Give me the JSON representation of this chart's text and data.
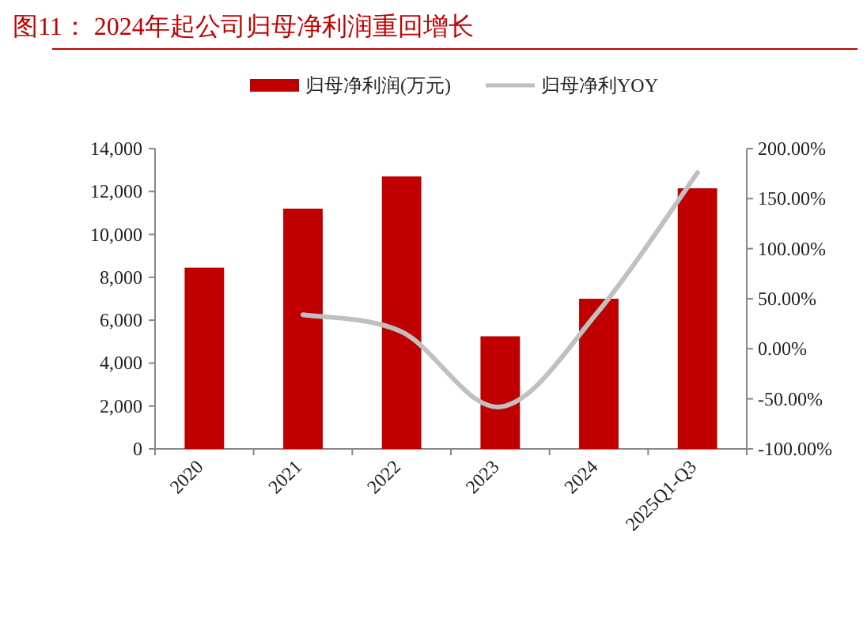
{
  "chart_data": {
    "type": "bar",
    "title": "图11：  2024年起公司归母净利润重回增长",
    "categories": [
      "2020",
      "2021",
      "2022",
      "2023",
      "2024",
      "2025Q1-Q3"
    ],
    "series": [
      {
        "name": "归母净利润(万元)",
        "axis": "y",
        "color": "#c00000",
        "values": [
          8450,
          11200,
          12700,
          5250,
          7000,
          12150
        ]
      },
      {
        "name": "归母净利YOY",
        "type": "line",
        "axis": "y2",
        "color": "#c0c0c0",
        "values": [
          null,
          34,
          17,
          -58,
          38,
          176
        ]
      }
    ],
    "ylim": [
      0,
      14000
    ],
    "yticks": [
      0,
      {
        "value": 2000,
        "label": "2,000"
      },
      {
        "value": 4000,
        "label": "4,000"
      },
      {
        "value": 6000,
        "label": "6,000"
      },
      {
        "value": 8000,
        "label": "8,000"
      },
      {
        "value": 10000,
        "label": "10,000"
      },
      {
        "value": 12000,
        "label": "12,000"
      },
      {
        "value": 14000,
        "label": "14,000"
      }
    ],
    "y2lim": [
      -100,
      200
    ],
    "y2ticks": [
      {
        "value": -100,
        "label": "-100.00%"
      },
      {
        "value": -50,
        "label": "-50.00%"
      },
      {
        "value": 0,
        "label": "0.00%"
      },
      {
        "value": 50,
        "label": "50.00%"
      },
      {
        "value": 100,
        "label": "100.00%"
      },
      {
        "value": 150,
        "label": "150.00%"
      },
      {
        "value": 200,
        "label": "200.00%"
      }
    ],
    "legend": "top",
    "grid": false
  }
}
